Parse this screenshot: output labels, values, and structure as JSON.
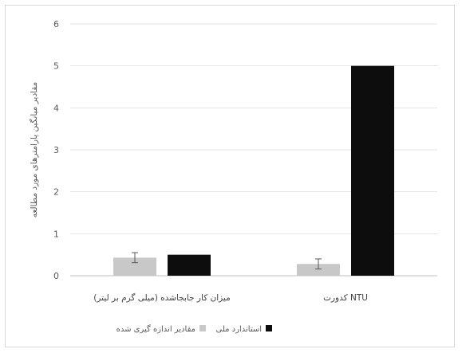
{
  "chart_data": {
    "type": "bar",
    "ylabel": "مقادیر میانگین پارامترهای مورد مطالعه",
    "ylim": [
      0,
      6
    ],
    "yticks": [
      0,
      1,
      2,
      3,
      4,
      5,
      6
    ],
    "categories": [
      "میزان کار جابجاشده (میلی گرم بر لیتر)",
      "کدورت NTU"
    ],
    "series": [
      {
        "name": "مقادیر اندازه گیری شده",
        "values": [
          0.43,
          0.28
        ],
        "error": [
          0.12,
          0.12
        ],
        "color": "#c8c8c8"
      },
      {
        "name": "استاندارد ملی",
        "values": [
          0.5,
          5.0
        ],
        "color": "#0d0d0d"
      }
    ],
    "grid": true,
    "legend_position": "bottom"
  }
}
